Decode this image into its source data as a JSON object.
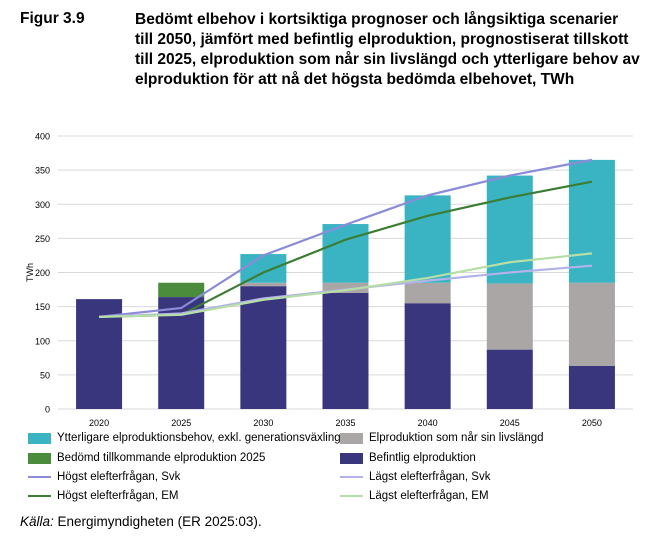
{
  "figure_label": "Figur 3.9",
  "title": "Bedömt elbehov i kortsiktiga prognoser och långsiktiga scenarier till 2050, jämfört med befintlig elproduktion, prognostiserat tillskott till 2025, elproduktion som når sin livslängd och ytterligare behov av elproduktion för att nå det högsta bedömda elbehovet, TWh",
  "source_label": "Källa:",
  "source_text": " Energimyndigheten (ER 2025:03).",
  "chart_data": {
    "type": "bar",
    "stacked": true,
    "categories": [
      "2020",
      "2025",
      "2030",
      "2035",
      "2040",
      "2045",
      "2050"
    ],
    "ylabel": "TWh",
    "ylim": [
      0,
      400
    ],
    "yticks": [
      0,
      50,
      100,
      150,
      200,
      250,
      300,
      350,
      400
    ],
    "grid": true,
    "legend_position": "bottom",
    "bar_series": [
      {
        "name": "Befintlig elproduktion",
        "color": "#39367e",
        "values": [
          161,
          164,
          180,
          170,
          155,
          87,
          63
        ]
      },
      {
        "name": "Elproduktion som når sin livslängd",
        "color": "#aaa6a6",
        "values": [
          0,
          0,
          5,
          15,
          30,
          97,
          122
        ]
      },
      {
        "name": "Bedömd tillkommande elproduktion 2025",
        "color": "#4b8b3c",
        "values": [
          0,
          21,
          0,
          0,
          0,
          0,
          0
        ]
      },
      {
        "name": "Ytterligare elproduktionsbehov, exkl. generationsväxling",
        "color": "#3ab3c3",
        "values": [
          0,
          0,
          42,
          86,
          128,
          158,
          180
        ]
      }
    ],
    "line_series": [
      {
        "name": "Högst elefterfrågan, Svk",
        "color": "#8b8bd8",
        "values": [
          135,
          148,
          225,
          270,
          313,
          342,
          365
        ]
      },
      {
        "name": "Högst elefterfrågan, EM",
        "color": "#3b7d32",
        "values": [
          135,
          138,
          200,
          248,
          283,
          310,
          333
        ]
      },
      {
        "name": "Lägst elefterfrågan, Svk",
        "color": "#b3b3ea",
        "values": [
          135,
          140,
          162,
          175,
          188,
          200,
          210
        ]
      },
      {
        "name": "Lägst elefterfrågan, EM",
        "color": "#b6dea6",
        "values": [
          135,
          138,
          160,
          174,
          192,
          215,
          228
        ]
      }
    ]
  },
  "legend": [
    {
      "label": "Ytterligare elproduktionsbehov, exkl. generationsväxling",
      "kind": "box",
      "color": "#3ab3c3"
    },
    {
      "label": "Elproduktion som når sin livslängd",
      "kind": "box",
      "color": "#aaa6a6"
    },
    {
      "label": "Bedömd tillkommande elproduktion 2025",
      "kind": "box",
      "color": "#4b8b3c"
    },
    {
      "label": "Befintlig elproduktion",
      "kind": "box",
      "color": "#39367e"
    },
    {
      "label": "Högst elefterfrågan, Svk",
      "kind": "line",
      "color": "#8b8bd8"
    },
    {
      "label": "Lägst elefterfrågan, Svk",
      "kind": "line",
      "color": "#b3b3ea"
    },
    {
      "label": "Högst elefterfrågan, EM",
      "kind": "line",
      "color": "#3b7d32"
    },
    {
      "label": "Lägst elefterfrågan, EM",
      "kind": "line",
      "color": "#b6dea6"
    }
  ]
}
